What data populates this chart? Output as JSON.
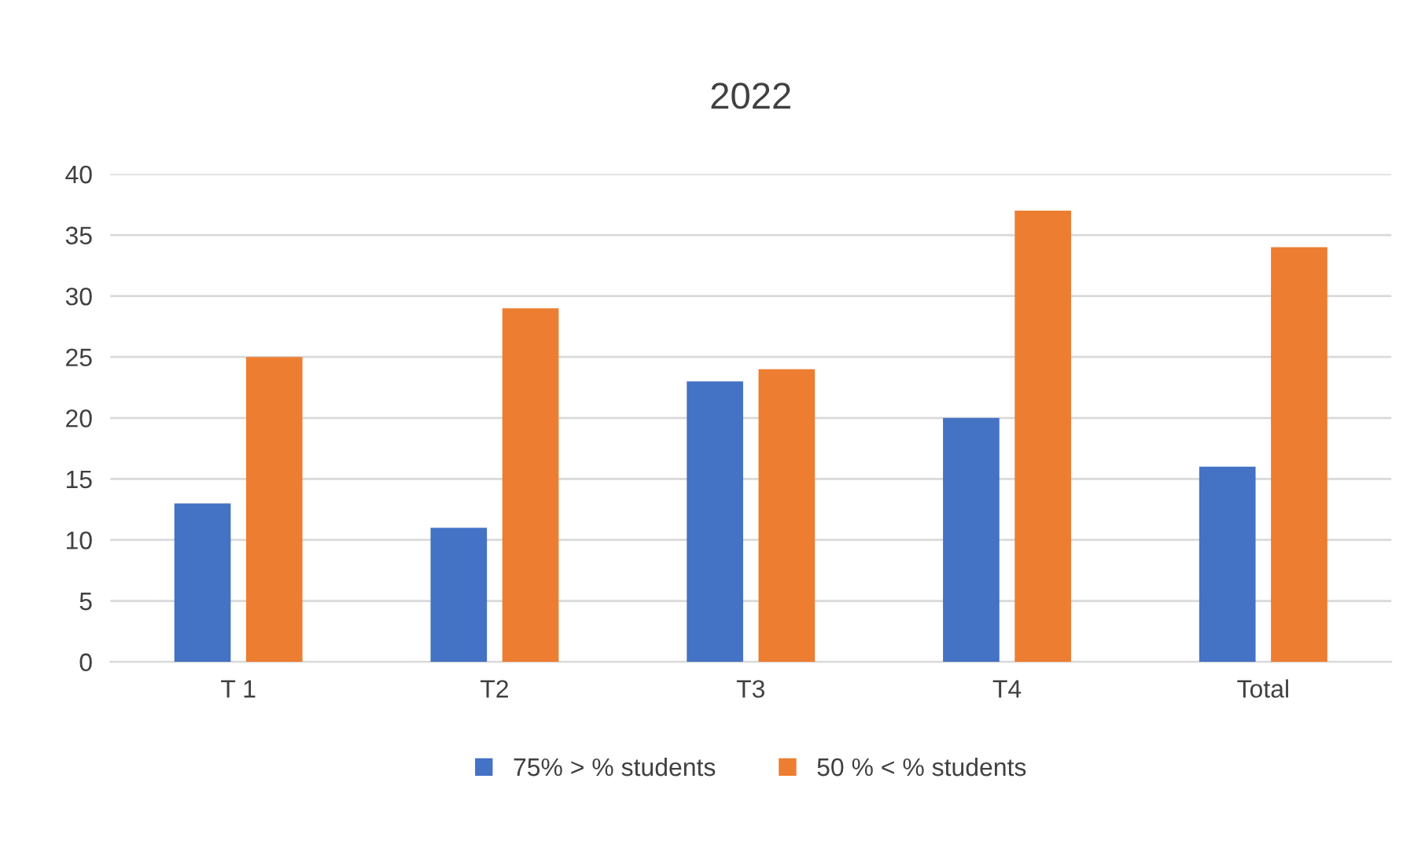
{
  "chart_data": {
    "type": "bar",
    "title": "2022",
    "categories": [
      "T 1",
      "T2",
      "T3",
      "T4",
      "Total"
    ],
    "series": [
      {
        "name": "75% > % students",
        "color": "#4472c4",
        "values": [
          13,
          11,
          23,
          20,
          16
        ]
      },
      {
        "name": "50 % < % students",
        "color": "#ed7d31",
        "values": [
          25,
          29,
          24,
          37,
          34
        ]
      }
    ],
    "ylim": [
      0,
      40
    ],
    "yticks": [
      0,
      5,
      10,
      15,
      20,
      25,
      30,
      35,
      40
    ],
    "grid": "y",
    "legend": "bottom"
  }
}
